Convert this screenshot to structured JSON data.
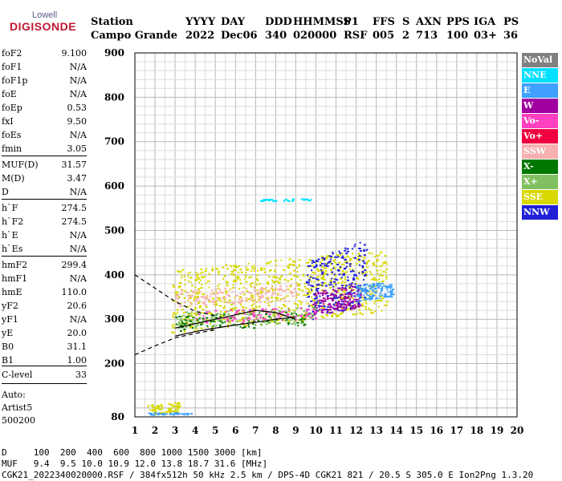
{
  "logo": {
    "line1": "Lowell",
    "line2": "DIGISONDE"
  },
  "header": {
    "row1": [
      "Station",
      "YYYY",
      "DAY",
      "DDD",
      "HHMMSS",
      "P1",
      "FFS",
      "S",
      "AXN",
      "PPS",
      "IGA",
      "PS"
    ],
    "row2": [
      "Campo Grande",
      "2022",
      "Dec06",
      "340",
      "020000",
      "RSF",
      "005",
      "2",
      "713",
      "100",
      "03+",
      "36"
    ]
  },
  "params": [
    {
      "label": "foF2",
      "value": "9.100"
    },
    {
      "label": "foF1",
      "value": "N/A"
    },
    {
      "label": "foF1p",
      "value": "N/A"
    },
    {
      "label": "foE",
      "value": "N/A"
    },
    {
      "label": "foEp",
      "value": "0.53"
    },
    {
      "label": "fxI",
      "value": "9.50"
    },
    {
      "label": "foEs",
      "value": "N/A"
    },
    {
      "label": "fmin",
      "value": "3.05"
    },
    {
      "label": "MUF(D)",
      "value": "31.57"
    },
    {
      "label": "M(D)",
      "value": "3.47"
    },
    {
      "label": "D",
      "value": "N/A"
    },
    {
      "label": "h`F",
      "value": "274.5"
    },
    {
      "label": "h`F2",
      "value": "274.5"
    },
    {
      "label": "h`E",
      "value": "N/A"
    },
    {
      "label": "h`Es",
      "value": "N/A"
    },
    {
      "label": "hmF2",
      "value": "299.4"
    },
    {
      "label": "hmF1",
      "value": "N/A"
    },
    {
      "label": "hmE",
      "value": "110.0"
    },
    {
      "label": "yF2",
      "value": "20.6"
    },
    {
      "label": "yF1",
      "value": "N/A"
    },
    {
      "label": "yE",
      "value": "20.0"
    },
    {
      "label": "B0",
      "value": "31.1"
    },
    {
      "label": "B1",
      "value": "1.00"
    },
    {
      "label": "C-level",
      "value": "33"
    }
  ],
  "auto": [
    "Auto:",
    "Artist5",
    "500200"
  ],
  "legend": [
    {
      "label": "NoVal",
      "color": "#808080"
    },
    {
      "label": "NNE",
      "color": "#00e0ff"
    },
    {
      "label": "E",
      "color": "#3fa0ff"
    },
    {
      "label": "W",
      "color": "#a000a0"
    },
    {
      "label": "Vo-",
      "color": "#ff40c0"
    },
    {
      "label": "Vo+",
      "color": "#f00040"
    },
    {
      "label": "SSW",
      "color": "#f8b0b0"
    },
    {
      "label": "X-",
      "color": "#007800"
    },
    {
      "label": "X+",
      "color": "#80c060"
    },
    {
      "label": "SSE",
      "color": "#d8d800"
    },
    {
      "label": "NNW",
      "color": "#2020d8"
    }
  ],
  "footer": {
    "line1": "D     100  200  400  600  800 1000 1500 3000 [km]",
    "line2": "MUF   9.4  9.5 10.0 10.9 12.0 13.8 18.7 31.6 [MHz]",
    "line3": "CGK21_2022340020000.RSF / 384fx512h 50 kHz 2.5 km / DPS-4D CGK21 821 / 20.5 S 305.0 E Ion2Png 1.3.20"
  },
  "chart_data": {
    "type": "scatter",
    "xlim": [
      1,
      20
    ],
    "ylim": [
      80,
      900
    ],
    "x_ticks": [
      1,
      2,
      3,
      4,
      5,
      6,
      7,
      8,
      9,
      10,
      11,
      12,
      13,
      14,
      15,
      16,
      17,
      18,
      19,
      20
    ],
    "y_ticks": [
      80,
      200,
      300,
      400,
      500,
      600,
      700,
      800,
      900
    ],
    "grid": true,
    "clusters": [
      {
        "name": "SSE",
        "color": "#d8d800",
        "x": [
          2.8,
          13.5
        ],
        "y": [
          270,
          460
        ],
        "n": 900
      },
      {
        "name": "NNW",
        "color": "#2020d8",
        "x": [
          9.5,
          12.5
        ],
        "y": [
          290,
          480
        ],
        "n": 250
      },
      {
        "name": "W",
        "color": "#a000a0",
        "x": [
          9.8,
          12.2
        ],
        "y": [
          310,
          380
        ],
        "n": 160
      },
      {
        "name": "SSW",
        "color": "#f8b0b0",
        "x": [
          3,
          9
        ],
        "y": [
          330,
          380
        ],
        "n": 160
      },
      {
        "name": "E",
        "color": "#3fa0ff",
        "x": [
          12,
          13.8
        ],
        "y": [
          340,
          390
        ],
        "n": 120
      },
      {
        "name": "X+",
        "color": "#80c060",
        "x": [
          3,
          10
        ],
        "y": [
          280,
          330
        ],
        "n": 180
      },
      {
        "name": "X-",
        "color": "#007800",
        "x": [
          3,
          9.5
        ],
        "y": [
          275,
          320
        ],
        "n": 90
      },
      {
        "name": "Vo-",
        "color": "#ff40c0",
        "x": [
          4,
          10
        ],
        "y": [
          290,
          330
        ],
        "n": 100
      },
      {
        "name": "NNE",
        "color": "#00e0ff",
        "x": [
          7.2,
          9.8
        ],
        "y": [
          567,
          573
        ],
        "n": 40
      },
      {
        "name": "SSE-low",
        "color": "#d8d800",
        "x": [
          1.6,
          3.2
        ],
        "y": [
          85,
          115
        ],
        "n": 80
      },
      {
        "name": "E-low",
        "color": "#3fa0ff",
        "x": [
          1.6,
          3.8
        ],
        "y": [
          85,
          92
        ],
        "n": 40
      }
    ],
    "profile_solid": [
      [
        3,
        280
      ],
      [
        4,
        290
      ],
      [
        5,
        300
      ],
      [
        6,
        310
      ],
      [
        7,
        320
      ],
      [
        8,
        315
      ],
      [
        9,
        300
      ]
    ],
    "profile_solid2": [
      [
        3,
        262
      ],
      [
        4,
        272
      ],
      [
        5,
        280
      ],
      [
        6,
        287
      ],
      [
        7,
        293
      ],
      [
        8,
        300
      ],
      [
        9,
        305
      ]
    ],
    "profile_dashed_upper": [
      [
        1,
        400
      ],
      [
        2,
        370
      ],
      [
        3,
        340
      ],
      [
        4,
        318
      ],
      [
        5,
        308
      ]
    ],
    "profile_dashed_lower": [
      [
        1,
        220
      ],
      [
        2,
        240
      ],
      [
        3,
        258
      ],
      [
        4,
        268
      ],
      [
        5,
        276
      ]
    ]
  }
}
